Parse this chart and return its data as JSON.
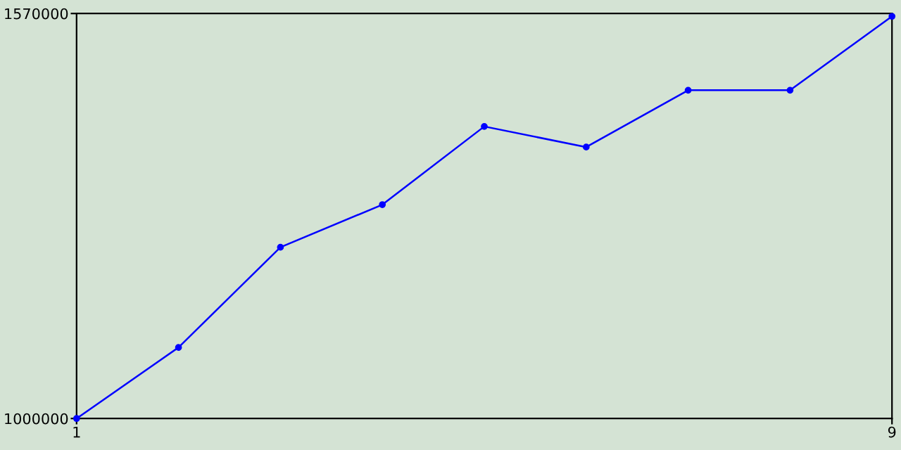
{
  "chart_data": {
    "type": "line",
    "x": [
      1,
      2,
      3,
      4,
      5,
      6,
      7,
      8,
      9
    ],
    "series": [
      {
        "color": "#0000ff",
        "values": [
          1000000,
          1100000,
          1241000,
          1301000,
          1411000,
          1382000,
          1462000,
          1462000,
          1566000
        ]
      }
    ],
    "xlim": [
      1,
      9
    ],
    "xticks": [
      1,
      9
    ],
    "ylim": [
      1000000,
      1570000
    ],
    "yticks": [
      1000000,
      1570000
    ],
    "grid": false,
    "legend": false,
    "marker": "circle",
    "line_style": "solid"
  }
}
